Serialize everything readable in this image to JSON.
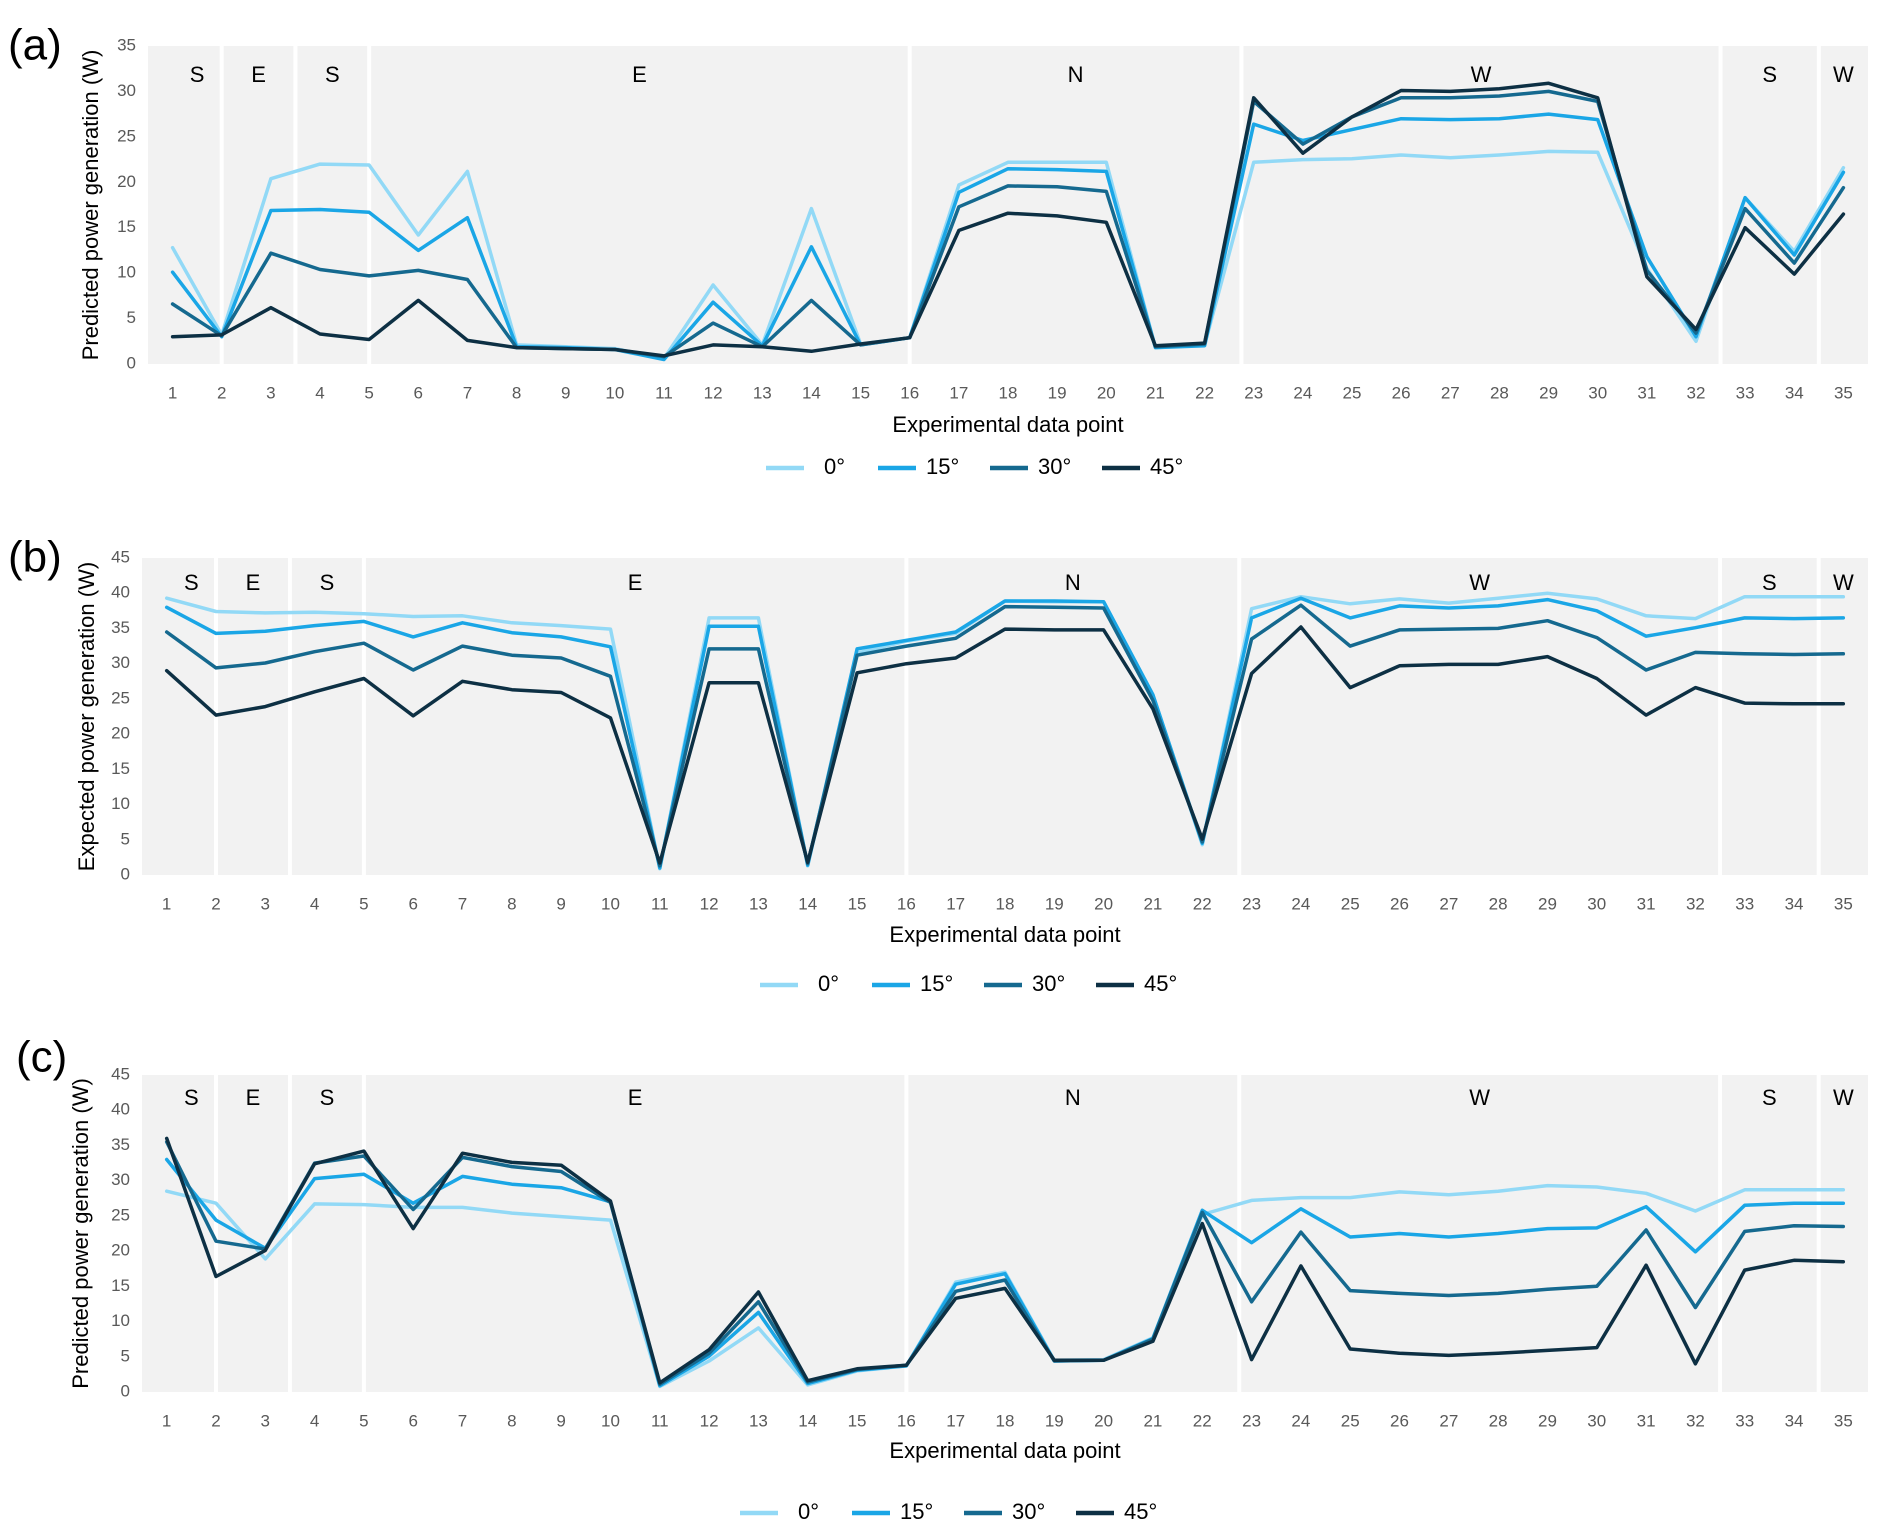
{
  "series_names": [
    "0°",
    "15°",
    "30°",
    "45°"
  ],
  "series_colors": [
    "#92d9f6",
    "#1aa6e6",
    "#15698f",
    "#0d3044"
  ],
  "plot_background": "#f2f2f2",
  "divider_color": "#ffffff",
  "chart_data": [
    {
      "type": "line",
      "panel_label": "(a)",
      "ylabel": "Predicted power generation (W)",
      "xlabel": "Experimental data point",
      "ylim": [
        0,
        35
      ],
      "yticks": [
        0,
        5,
        10,
        15,
        20,
        25,
        30,
        35
      ],
      "x": [
        1,
        2,
        3,
        4,
        5,
        6,
        7,
        8,
        9,
        10,
        11,
        12,
        13,
        14,
        15,
        16,
        17,
        18,
        19,
        20,
        21,
        22,
        23,
        24,
        25,
        26,
        27,
        28,
        29,
        30,
        31,
        32,
        33,
        34,
        35
      ],
      "grid": false,
      "legend_position": "bottom",
      "orientation_labels": [
        {
          "label": "S",
          "from": 1,
          "to": 2
        },
        {
          "label": "E",
          "from": 2,
          "to": 3.5
        },
        {
          "label": "S",
          "from": 3.5,
          "to": 5
        },
        {
          "label": "E",
          "from": 5,
          "to": 16
        },
        {
          "label": "N",
          "from": 16,
          "to": 22.75
        },
        {
          "label": "W",
          "from": 22.75,
          "to": 32.5
        },
        {
          "label": "S",
          "from": 32.5,
          "to": 34.5
        },
        {
          "label": "W",
          "from": 34.5,
          "to": 35.5
        }
      ],
      "dividers": [
        2,
        3.5,
        5,
        16,
        22.75,
        32.5,
        34.5
      ],
      "series": [
        {
          "name": "0°",
          "values": [
            12.8,
            3.2,
            20.4,
            22.0,
            21.9,
            14.2,
            21.2,
            2.1,
            1.9,
            1.7,
            0.6,
            8.7,
            2.1,
            17.1,
            2.2,
            2.9,
            19.7,
            22.2,
            22.2,
            22.2,
            1.8,
            2.1,
            22.2,
            22.5,
            22.6,
            23.0,
            22.7,
            23.0,
            23.4,
            23.3,
            10.5,
            2.5,
            18.3,
            12.4,
            21.6
          ]
        },
        {
          "name": "15°",
          "values": [
            10.1,
            3.0,
            16.9,
            17.0,
            16.7,
            12.5,
            16.1,
            1.9,
            1.8,
            1.6,
            0.5,
            6.8,
            2.0,
            12.9,
            2.1,
            2.9,
            18.9,
            21.5,
            21.4,
            21.2,
            1.8,
            2.0,
            26.4,
            24.6,
            25.8,
            27.0,
            26.9,
            27.0,
            27.5,
            26.9,
            11.8,
            3.0,
            18.3,
            12.0,
            21.1
          ]
        },
        {
          "name": "30°",
          "values": [
            6.6,
            3.1,
            12.2,
            10.4,
            9.7,
            10.3,
            9.3,
            1.8,
            1.7,
            1.6,
            0.8,
            4.5,
            1.9,
            7.0,
            2.1,
            2.9,
            17.3,
            19.6,
            19.5,
            19.0,
            1.9,
            2.2,
            28.9,
            24.2,
            27.2,
            29.3,
            29.3,
            29.5,
            30.0,
            28.9,
            10.3,
            3.4,
            17.1,
            11.1,
            19.4
          ]
        },
        {
          "name": "45°",
          "values": [
            3.0,
            3.2,
            6.2,
            3.3,
            2.7,
            7.0,
            2.6,
            1.8,
            1.7,
            1.6,
            0.9,
            2.1,
            1.9,
            1.4,
            2.2,
            2.9,
            14.7,
            16.6,
            16.3,
            15.6,
            2.0,
            2.3,
            29.3,
            23.2,
            27.2,
            30.1,
            30.0,
            30.3,
            30.9,
            29.3,
            9.6,
            3.8,
            15.0,
            9.9,
            16.5
          ]
        }
      ]
    },
    {
      "type": "line",
      "panel_label": "(b)",
      "ylabel": "Expected power generation (W)",
      "xlabel": "Experimental data point",
      "ylim": [
        0,
        45
      ],
      "yticks": [
        0,
        5,
        10,
        15,
        20,
        25,
        30,
        35,
        40,
        45
      ],
      "x": [
        1,
        2,
        3,
        4,
        5,
        6,
        7,
        8,
        9,
        10,
        11,
        12,
        13,
        14,
        15,
        16,
        17,
        18,
        19,
        20,
        21,
        22,
        23,
        24,
        25,
        26,
        27,
        28,
        29,
        30,
        31,
        32,
        33,
        34,
        35
      ],
      "grid": false,
      "legend_position": "bottom",
      "orientation_labels": [
        {
          "label": "S",
          "from": 1,
          "to": 2
        },
        {
          "label": "E",
          "from": 2,
          "to": 3.5
        },
        {
          "label": "S",
          "from": 3.5,
          "to": 5
        },
        {
          "label": "E",
          "from": 5,
          "to": 16
        },
        {
          "label": "N",
          "from": 16,
          "to": 22.75
        },
        {
          "label": "W",
          "from": 22.75,
          "to": 32.5
        },
        {
          "label": "S",
          "from": 32.5,
          "to": 34.5
        },
        {
          "label": "W",
          "from": 34.5,
          "to": 35.5
        }
      ],
      "dividers": [
        2,
        3.5,
        5,
        16,
        22.75,
        32.5,
        34.5
      ],
      "series": [
        {
          "name": "0°",
          "values": [
            39.3,
            37.4,
            37.2,
            37.3,
            37.1,
            36.7,
            36.8,
            35.8,
            35.4,
            34.9,
            0.9,
            36.5,
            36.5,
            1.3,
            31.5,
            33.2,
            34.3,
            38.9,
            38.8,
            38.8,
            25.5,
            4.3,
            37.8,
            39.5,
            38.5,
            39.2,
            38.6,
            39.3,
            40.0,
            39.2,
            36.8,
            36.4,
            39.5,
            39.5,
            39.5
          ]
        },
        {
          "name": "15°",
          "values": [
            38.0,
            34.3,
            34.6,
            35.4,
            36.0,
            33.8,
            35.8,
            34.4,
            33.8,
            32.4,
            1.0,
            35.3,
            35.3,
            1.4,
            32.1,
            33.3,
            34.5,
            38.9,
            38.9,
            38.8,
            25.6,
            4.5,
            36.5,
            39.3,
            36.5,
            38.2,
            37.9,
            38.2,
            39.1,
            37.5,
            33.9,
            35.1,
            36.5,
            36.4,
            36.5
          ]
        },
        {
          "name": "30°",
          "values": [
            34.5,
            29.4,
            30.1,
            31.7,
            32.9,
            29.1,
            32.5,
            31.2,
            30.8,
            28.2,
            1.3,
            32.1,
            32.1,
            1.6,
            31.2,
            32.5,
            33.6,
            38.1,
            38.0,
            37.9,
            24.8,
            4.7,
            33.5,
            38.3,
            32.5,
            34.8,
            34.9,
            35.0,
            36.1,
            33.7,
            29.1,
            31.6,
            31.4,
            31.3,
            31.4
          ]
        },
        {
          "name": "45°",
          "values": [
            29.0,
            22.7,
            23.9,
            26.0,
            27.9,
            22.6,
            27.5,
            26.3,
            25.9,
            22.3,
            1.7,
            27.3,
            27.3,
            1.8,
            28.7,
            30.0,
            30.8,
            34.9,
            34.8,
            34.8,
            23.6,
            5.1,
            28.6,
            35.2,
            26.6,
            29.7,
            29.9,
            29.9,
            31.0,
            27.9,
            22.7,
            26.6,
            24.4,
            24.3,
            24.3
          ]
        }
      ]
    },
    {
      "type": "line",
      "panel_label": "(c)",
      "ylabel": "Predicted power generation (W)",
      "xlabel": "Experimental data point",
      "ylim": [
        0,
        45
      ],
      "yticks": [
        0,
        5,
        10,
        15,
        20,
        25,
        30,
        35,
        40,
        45
      ],
      "x": [
        1,
        2,
        3,
        4,
        5,
        6,
        7,
        8,
        9,
        10,
        11,
        12,
        13,
        14,
        15,
        16,
        17,
        18,
        19,
        20,
        21,
        22,
        23,
        24,
        25,
        26,
        27,
        28,
        29,
        30,
        31,
        32,
        33,
        34,
        35
      ],
      "grid": false,
      "legend_position": "bottom",
      "orientation_labels": [
        {
          "label": "S",
          "from": 1,
          "to": 2
        },
        {
          "label": "E",
          "from": 2,
          "to": 3.5
        },
        {
          "label": "S",
          "from": 3.5,
          "to": 5
        },
        {
          "label": "E",
          "from": 5,
          "to": 16
        },
        {
          "label": "N",
          "from": 16,
          "to": 22.75
        },
        {
          "label": "W",
          "from": 22.75,
          "to": 32.5
        },
        {
          "label": "S",
          "from": 32.5,
          "to": 34.5
        },
        {
          "label": "W",
          "from": 34.5,
          "to": 35.5
        }
      ],
      "dividers": [
        2,
        3.5,
        5,
        16,
        22.75,
        32.5,
        34.5
      ],
      "series": [
        {
          "name": "0°",
          "values": [
            28.5,
            26.8,
            18.9,
            26.7,
            26.6,
            26.2,
            26.2,
            25.4,
            24.9,
            24.4,
            0.8,
            4.4,
            9.1,
            1.0,
            3.0,
            3.7,
            15.6,
            17.0,
            4.5,
            4.6,
            7.7,
            25.2,
            27.2,
            27.6,
            27.6,
            28.4,
            28.0,
            28.5,
            29.3,
            29.1,
            28.2,
            25.7,
            28.7,
            28.7,
            28.7
          ]
        },
        {
          "name": "15°",
          "values": [
            33.0,
            24.4,
            20.4,
            30.3,
            30.9,
            26.8,
            30.6,
            29.5,
            29.0,
            27.0,
            0.9,
            5.1,
            11.3,
            1.2,
            3.1,
            3.7,
            15.3,
            16.8,
            4.4,
            4.5,
            7.6,
            25.8,
            21.2,
            26.0,
            22.0,
            22.5,
            22.0,
            22.5,
            23.2,
            23.3,
            26.3,
            19.9,
            26.5,
            26.8,
            26.8
          ]
        },
        {
          "name": "30°",
          "values": [
            35.5,
            21.4,
            20.3,
            32.5,
            33.5,
            25.9,
            33.3,
            32.0,
            31.3,
            26.9,
            1.1,
            5.5,
            12.8,
            1.4,
            3.2,
            3.8,
            14.3,
            15.9,
            4.4,
            4.5,
            7.5,
            25.5,
            12.8,
            22.7,
            14.4,
            14.0,
            13.7,
            14.0,
            14.6,
            15.0,
            23.0,
            12.0,
            22.8,
            23.6,
            23.5
          ]
        },
        {
          "name": "45°",
          "values": [
            36.0,
            16.4,
            20.1,
            32.4,
            34.2,
            23.2,
            33.9,
            32.6,
            32.2,
            27.1,
            1.3,
            6.0,
            14.2,
            1.6,
            3.3,
            3.8,
            13.3,
            14.7,
            4.5,
            4.5,
            7.2,
            23.9,
            4.6,
            17.9,
            6.1,
            5.5,
            5.2,
            5.5,
            5.9,
            6.3,
            18.0,
            4.0,
            17.3,
            18.7,
            18.5
          ]
        }
      ]
    }
  ]
}
